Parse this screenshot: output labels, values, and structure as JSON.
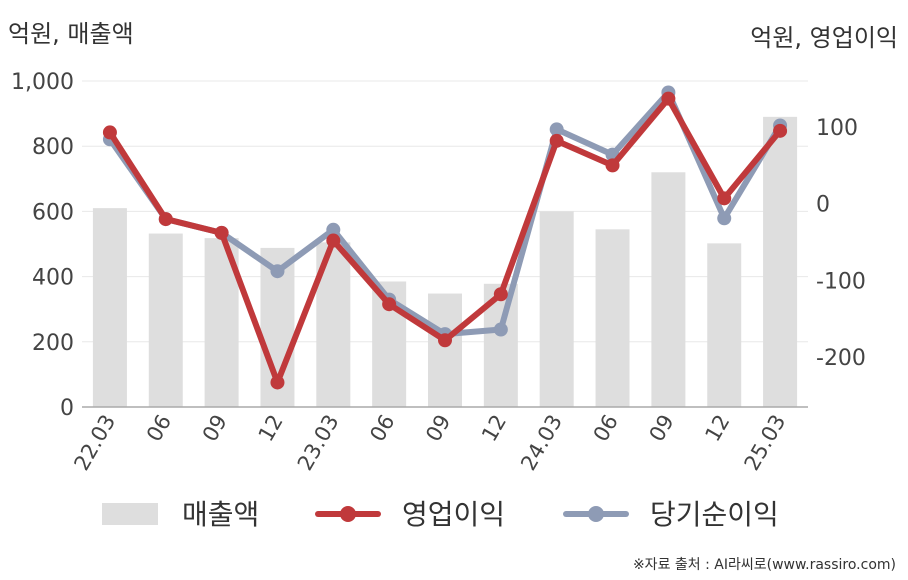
{
  "chart_data": {
    "type": "bar+line",
    "left_axis_unit": "억원, 매출액",
    "right_axis_unit": "억원, 영업이익",
    "categories": [
      "22.03",
      "06",
      "09",
      "12",
      "23.03",
      "06",
      "09",
      "12",
      "24.03",
      "06",
      "09",
      "12",
      "25.03"
    ],
    "left_axis": {
      "ylim": [
        0,
        1000
      ],
      "ticks": [
        "1,000",
        "800",
        "600",
        "400",
        "200",
        "0"
      ],
      "tick_values": [
        1000,
        800,
        600,
        400,
        200,
        0
      ]
    },
    "right_axis": {
      "ylim": [
        -265,
        160
      ],
      "ticks": [
        "100",
        "0",
        "-100",
        "-200"
      ],
      "tick_values": [
        100,
        0,
        -100,
        -200
      ]
    },
    "series": [
      {
        "name": "매출액",
        "type": "bar",
        "axis": "left",
        "color": "#dedede",
        "values": [
          610,
          532,
          518,
          488,
          505,
          385,
          348,
          378,
          600,
          545,
          720,
          502,
          890
        ]
      },
      {
        "name": "영업이익",
        "type": "line",
        "axis": "right",
        "color": "#c0393b",
        "values": [
          93,
          -20,
          -38,
          -233,
          -48,
          -131,
          -178,
          -118,
          82,
          50,
          137,
          7,
          95
        ]
      },
      {
        "name": "당기순이익",
        "type": "line",
        "axis": "right",
        "color": "#8e9bb5",
        "values": [
          84,
          -20,
          -38,
          -88,
          -34,
          -125,
          -170,
          -164,
          97,
          64,
          145,
          -19,
          102
        ]
      }
    ],
    "grid": true,
    "legend_position": "bottom"
  },
  "source_text": "※자료 출처 : AI라씨로(www.rassiro.com)"
}
